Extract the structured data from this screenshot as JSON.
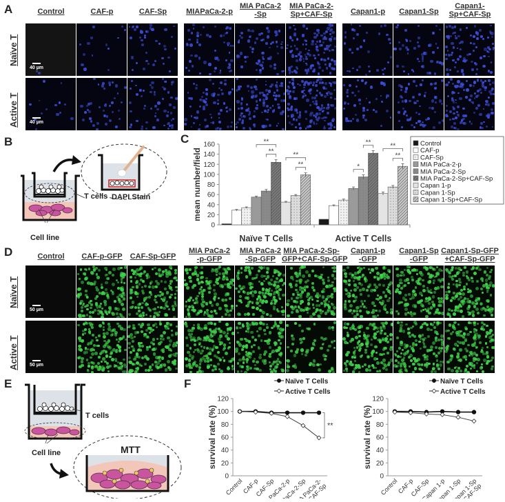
{
  "panel_a": {
    "letter": "A",
    "columns": [
      "Control",
      "CAF-p",
      "CAF-Sp",
      "MIAPaCa-2-p",
      "MIA PaCa-2\n-Sp",
      "MIA PaCa-2-\nSp+CAF-Sp",
      "Capan1-p",
      "Capan1-Sp",
      "Capan1-\nSp+CAF-Sp"
    ],
    "column_lines": [
      [
        "Control"
      ],
      [
        "CAF-p"
      ],
      [
        "CAF-Sp"
      ],
      [
        "MIAPaCa-2-p"
      ],
      [
        "MIA PaCa-2",
        "-Sp"
      ],
      [
        "MIA PaCa-2-",
        "Sp+CAF-Sp"
      ],
      [
        "Capan1-p"
      ],
      [
        "Capan1-Sp"
      ],
      [
        "Capan1-",
        "Sp+CAF-Sp"
      ]
    ],
    "rows": [
      "Naïve T",
      "Active T"
    ],
    "scale_bar": "40 µm",
    "stain_color": "#3b4fd8"
  },
  "panel_b": {
    "letter": "B",
    "labels": {
      "t_cells": "T cells",
      "cell_line": "Cell line",
      "stain": "DAPI Stain"
    }
  },
  "panel_d": {
    "letter": "D",
    "column_lines": [
      [
        "Control"
      ],
      [
        "CAF-p-GFP"
      ],
      [
        "CAF-Sp-GFP"
      ],
      [
        "MIA PaCa-2",
        "-p-GFP"
      ],
      [
        "MIA PaCa-2",
        "-Sp-GFP"
      ],
      [
        "MIA PaCa-2-Sp-",
        "GFP+CAF-Sp-GFP"
      ],
      [
        "Capan1-p",
        "-GFP"
      ],
      [
        "Capan1-Sp",
        "-GFP"
      ],
      [
        "Capan1-Sp-GFP",
        "+CAF-Sp-GFP"
      ]
    ],
    "rows": [
      "Naïve T",
      "Active T"
    ],
    "scale_bar": "50 µm",
    "stain_color": "#3fd24a"
  },
  "panel_e": {
    "letter": "E",
    "labels": {
      "t_cells": "T cells",
      "cell_line": "Cell line",
      "assay": "MTT"
    }
  },
  "chart_data": [
    {
      "panel": "C",
      "type": "bar",
      "title": "",
      "xlabel": "",
      "ylabel": "mean number/field",
      "ylim": [
        0,
        160
      ],
      "yticks": [
        0,
        20,
        40,
        60,
        80,
        100,
        120,
        140,
        160
      ],
      "categories": [
        "Naïve T Cells",
        "Active T Cells"
      ],
      "legend_position": "right",
      "series": [
        {
          "name": "Control",
          "values": [
            2,
            11
          ],
          "errors": [
            0,
            0
          ],
          "fill": "#1a1a1a",
          "pattern": "solid"
        },
        {
          "name": "CAF-p",
          "values": [
            29,
            38
          ],
          "errors": [
            1.5,
            1.5
          ],
          "fill": "#ffffff",
          "pattern": "solid"
        },
        {
          "name": "CAF-Sp",
          "values": [
            34,
            49
          ],
          "errors": [
            1.5,
            2
          ],
          "fill": "#f2f2f2",
          "pattern": "dots"
        },
        {
          "name": "MIA PaCa-2-p",
          "values": [
            55,
            72
          ],
          "errors": [
            2,
            3
          ],
          "fill": "#9a9a9a",
          "pattern": "solid"
        },
        {
          "name": "MIA PaCa-2-Sp",
          "values": [
            67,
            95
          ],
          "errors": [
            3,
            4
          ],
          "fill": "#8a8a8a",
          "pattern": "dots"
        },
        {
          "name": "MIA PaCa-2-Sp+CAF-Sp",
          "values": [
            124,
            142
          ],
          "errors": [
            5,
            5
          ],
          "fill": "#7a7a7a",
          "pattern": "hatch"
        },
        {
          "name": "Capan 1-p",
          "values": [
            45,
            62
          ],
          "errors": [
            1.5,
            3
          ],
          "fill": "#e4e4e4",
          "pattern": "solid"
        },
        {
          "name": "Capan 1-Sp",
          "values": [
            58,
            75
          ],
          "errors": [
            2,
            3
          ],
          "fill": "#dcdcdc",
          "pattern": "dots"
        },
        {
          "name": "Capan 1-Sp+CAF-Sp",
          "values": [
            99,
            116
          ],
          "errors": [
            4,
            5
          ],
          "fill": "#c8c8c8",
          "pattern": "hatch"
        }
      ],
      "annotations": [
        {
          "group": "Naïve T Cells",
          "from": "MIA PaCa-2-p",
          "to": "MIA PaCa-2-Sp+CAF-Sp",
          "label": "**"
        },
        {
          "group": "Naïve T Cells",
          "from": "MIA PaCa-2-Sp",
          "to": "MIA PaCa-2-Sp+CAF-Sp",
          "label": "**"
        },
        {
          "group": "Naïve T Cells",
          "from": "Capan 1-p",
          "to": "Capan 1-Sp+CAF-Sp",
          "label": "**"
        },
        {
          "group": "Naïve T Cells",
          "from": "Capan 1-Sp",
          "to": "Capan 1-Sp+CAF-Sp",
          "label": "**"
        },
        {
          "group": "Active T Cells",
          "from": "MIA PaCa-2-p",
          "to": "MIA PaCa-2-Sp+CAF-Sp",
          "label": "**"
        },
        {
          "group": "Active T Cells",
          "from": "MIA PaCa-2-p",
          "to": "MIA PaCa-2-Sp",
          "label": "*"
        },
        {
          "group": "Active T Cells",
          "from": "MIA PaCa-2-Sp",
          "to": "MIA PaCa-2-Sp+CAF-Sp",
          "label": "**"
        },
        {
          "group": "Active T Cells",
          "from": "Capan 1-p",
          "to": "Capan 1-Sp+CAF-Sp",
          "label": "**"
        },
        {
          "group": "Active T Cells",
          "from": "Capan 1-Sp",
          "to": "Capan 1-Sp+CAF-Sp",
          "label": "**"
        }
      ]
    },
    {
      "panel": "F-left",
      "type": "line",
      "ylabel": "survival rate (%)",
      "ylim": [
        0,
        120
      ],
      "yticks": [
        0,
        20,
        40,
        60,
        80,
        100,
        120
      ],
      "x": [
        "Control",
        "CAF-p",
        "CAF-Sp",
        "MIA PaCa-2-p",
        "MIA PaCa-2-Sp",
        "MIA PaCa-2-\nSp+CAF-Sp"
      ],
      "legend_position": "top",
      "series": [
        {
          "name": "Naïve T Cells",
          "values": [
            100,
            100,
            98,
            98,
            98,
            98
          ],
          "marker": "filled-circle"
        },
        {
          "name": "Active T Cells",
          "values": [
            100,
            99,
            97,
            92,
            78,
            59
          ],
          "marker": "open-diamond"
        }
      ],
      "annotations": [
        {
          "label": "**",
          "between": "last points"
        }
      ]
    },
    {
      "panel": "F-right",
      "type": "line",
      "ylabel": "survival rate (%)",
      "ylim": [
        0,
        120
      ],
      "yticks": [
        0,
        20,
        40,
        60,
        80,
        100,
        120
      ],
      "x": [
        "Control",
        "CAF-p",
        "CAF-Sp",
        "Capan 1-p",
        "Capan 1-Sp",
        "Capan 1-Sp\n+CAF-Sp"
      ],
      "legend_position": "top",
      "series": [
        {
          "name": "Naïve T Cells",
          "values": [
            100,
            100,
            99,
            100,
            99,
            99
          ],
          "marker": "filled-circle"
        },
        {
          "name": "Active T Cells",
          "values": [
            99,
            98,
            96,
            95,
            91,
            85
          ],
          "marker": "open-diamond"
        }
      ]
    }
  ],
  "panel_c_letter": "C",
  "panel_f_letter": "F"
}
